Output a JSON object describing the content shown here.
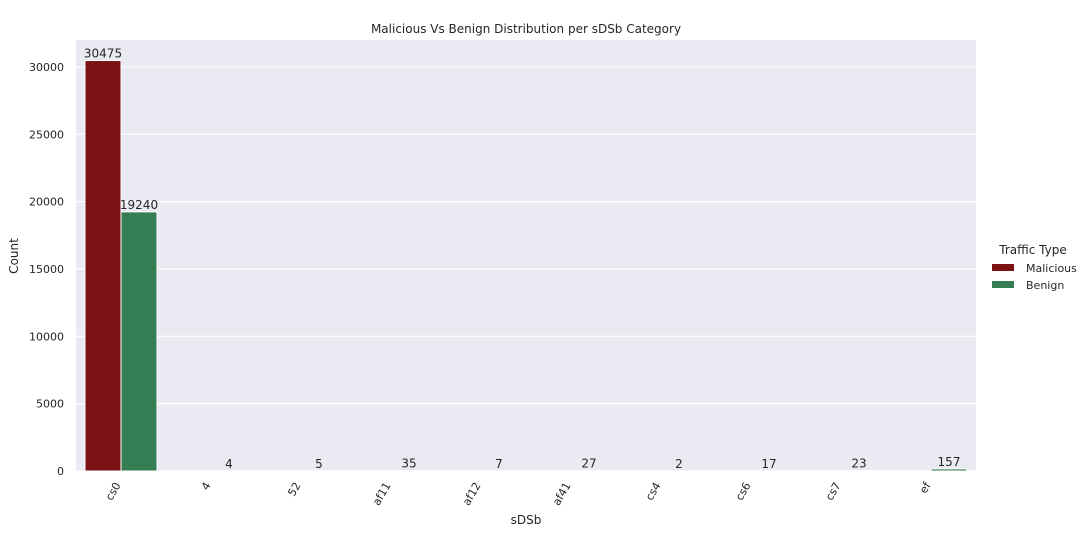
{
  "chart_data": {
    "type": "bar",
    "title": "Malicious Vs Benign Distribution per sDSb Category",
    "xlabel": "sDSb",
    "ylabel": "Count",
    "categories": [
      "cs0",
      "4",
      "52",
      "af11",
      "af12",
      "af41",
      "cs4",
      "cs6",
      "cs7",
      "ef"
    ],
    "series": [
      {
        "name": "Malicious",
        "color": "#7b1113",
        "values": [
          30475,
          0,
          0,
          0,
          0,
          0,
          0,
          0,
          0,
          0
        ]
      },
      {
        "name": "Benign",
        "color": "#357e53",
        "values": [
          19240,
          4,
          5,
          35,
          7,
          27,
          2,
          17,
          23,
          157
        ]
      }
    ],
    "data_labels": [
      {
        "series": 0,
        "category": 0,
        "text": "30475"
      },
      {
        "series": 1,
        "category": 0,
        "text": "19240"
      },
      {
        "series": 1,
        "category": 1,
        "text": "4"
      },
      {
        "series": 1,
        "category": 2,
        "text": "5"
      },
      {
        "series": 1,
        "category": 3,
        "text": "35"
      },
      {
        "series": 1,
        "category": 4,
        "text": "7"
      },
      {
        "series": 1,
        "category": 5,
        "text": "27"
      },
      {
        "series": 1,
        "category": 6,
        "text": "2"
      },
      {
        "series": 1,
        "category": 7,
        "text": "17"
      },
      {
        "series": 1,
        "category": 8,
        "text": "23"
      },
      {
        "series": 1,
        "category": 9,
        "text": "157"
      }
    ],
    "yticks": [
      0,
      5000,
      10000,
      15000,
      20000,
      25000,
      30000
    ],
    "ylim": [
      0,
      32000
    ],
    "grid": true,
    "legend": {
      "title": "Traffic Type",
      "placement": "right"
    },
    "background": "#eaeaf2"
  }
}
